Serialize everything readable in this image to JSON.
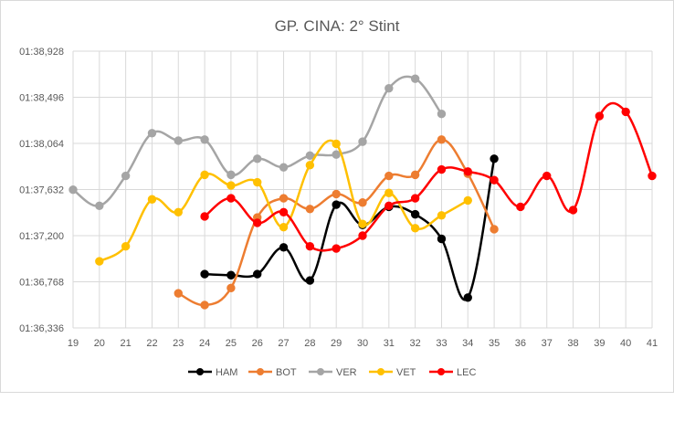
{
  "chart_data": {
    "type": "line",
    "title": "GP. CINA: 2° Stint",
    "xlabel": "",
    "ylabel": "",
    "x": [
      19,
      20,
      21,
      22,
      23,
      24,
      25,
      26,
      27,
      28,
      29,
      30,
      31,
      32,
      33,
      34,
      35,
      36,
      37,
      38,
      39,
      40,
      41
    ],
    "xlim": [
      19,
      41
    ],
    "ylim": [
      96.336,
      98.928
    ],
    "yticks": [
      96.336,
      96.768,
      97.2,
      97.632,
      98.064,
      98.496,
      98.928
    ],
    "ytick_labels": [
      "01:36,336",
      "01:36,768",
      "01:37,200",
      "01:37,632",
      "01:38,064",
      "01:38,496",
      "01:38,928"
    ],
    "grid": true,
    "legend": "bottom",
    "series": [
      {
        "name": "HAM",
        "color": "#000000",
        "points": [
          [
            24,
            96.84
          ],
          [
            25,
            96.83
          ],
          [
            26,
            96.84
          ],
          [
            27,
            97.09
          ],
          [
            28,
            96.78
          ],
          [
            29,
            97.49
          ],
          [
            30,
            97.3
          ],
          [
            31,
            97.47
          ],
          [
            32,
            97.4
          ],
          [
            33,
            97.17
          ],
          [
            34,
            96.62
          ],
          [
            35,
            97.92
          ]
        ]
      },
      {
        "name": "BOT",
        "color": "#ED7D31",
        "points": [
          [
            23,
            96.66
          ],
          [
            24,
            96.55
          ],
          [
            25,
            96.71
          ],
          [
            26,
            97.37
          ],
          [
            27,
            97.55
          ],
          [
            28,
            97.45
          ],
          [
            29,
            97.59
          ],
          [
            30,
            97.51
          ],
          [
            31,
            97.76
          ],
          [
            32,
            97.77
          ],
          [
            33,
            98.1
          ],
          [
            34,
            97.78
          ],
          [
            35,
            97.26
          ]
        ]
      },
      {
        "name": "VER",
        "color": "#A5A5A5",
        "points": [
          [
            19,
            97.63
          ],
          [
            20,
            97.48
          ],
          [
            21,
            97.76
          ],
          [
            22,
            98.16
          ],
          [
            23,
            98.09
          ],
          [
            24,
            98.1
          ],
          [
            25,
            97.77
          ],
          [
            26,
            97.92
          ],
          [
            27,
            97.84
          ],
          [
            28,
            97.95
          ],
          [
            29,
            97.96
          ],
          [
            30,
            98.08
          ],
          [
            31,
            98.58
          ],
          [
            32,
            98.67
          ],
          [
            33,
            98.34
          ]
        ]
      },
      {
        "name": "VET",
        "color": "#FFC000",
        "points": [
          [
            20,
            96.96
          ],
          [
            21,
            97.1
          ],
          [
            22,
            97.54
          ],
          [
            23,
            97.42
          ],
          [
            24,
            97.77
          ],
          [
            25,
            97.67
          ],
          [
            26,
            97.7
          ],
          [
            27,
            97.28
          ],
          [
            28,
            97.86
          ],
          [
            29,
            98.06
          ],
          [
            30,
            97.31
          ],
          [
            31,
            97.6
          ],
          [
            32,
            97.27
          ],
          [
            33,
            97.39
          ],
          [
            34,
            97.53
          ]
        ]
      },
      {
        "name": "LEC",
        "color": "#FF0000",
        "points": [
          [
            24,
            97.38
          ],
          [
            25,
            97.55
          ],
          [
            26,
            97.32
          ],
          [
            27,
            97.42
          ],
          [
            28,
            97.1
          ],
          [
            29,
            97.08
          ],
          [
            30,
            97.2
          ],
          [
            31,
            97.48
          ],
          [
            32,
            97.55
          ],
          [
            33,
            97.82
          ],
          [
            34,
            97.8
          ],
          [
            35,
            97.72
          ],
          [
            36,
            97.47
          ],
          [
            37,
            97.76
          ],
          [
            38,
            97.44
          ],
          [
            39,
            98.32
          ],
          [
            40,
            98.36
          ],
          [
            41,
            97.76
          ]
        ]
      }
    ]
  }
}
